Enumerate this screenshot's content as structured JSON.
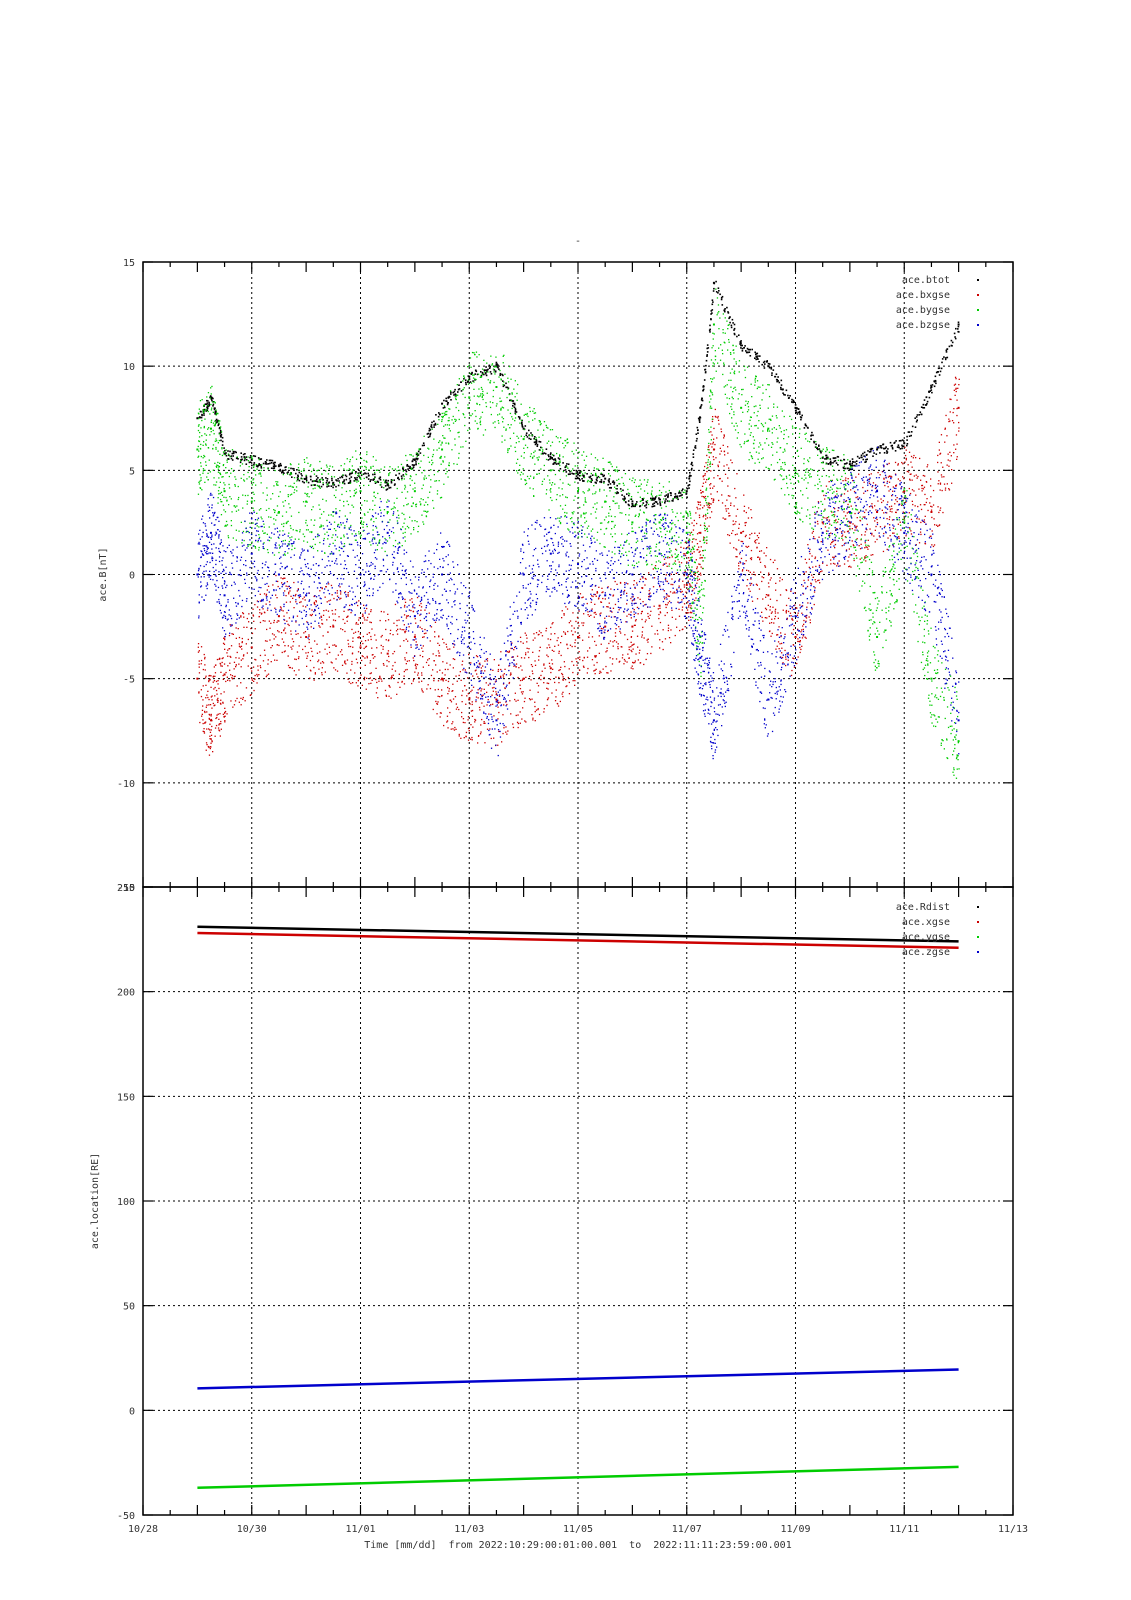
{
  "chart_data": [
    {
      "type": "scatter",
      "title": "-",
      "ylabel": "ace.B[nT]",
      "ylim": [
        -15,
        15
      ],
      "yticks": [
        -15,
        -10,
        -5,
        0,
        5,
        10,
        15
      ],
      "xlim": [
        "10/28",
        "11/13"
      ],
      "grid": true,
      "legend_position": "top-right",
      "series": [
        {
          "name": "ace.btot",
          "color": "#000000",
          "x": [
            "10/29 00:00",
            "10/29 06:00",
            "10/29 12:00",
            "10/30 00:00",
            "10/30 12:00",
            "10/31 00:00",
            "10/31 12:00",
            "11/01 00:00",
            "11/01 12:00",
            "11/02 00:00",
            "11/02 12:00",
            "11/03 00:00",
            "11/03 12:00",
            "11/04 00:00",
            "11/04 12:00",
            "11/05 00:00",
            "11/05 12:00",
            "11/06 00:00",
            "11/06 12:00",
            "11/07 00:00",
            "11/07 06:00",
            "11/07 12:00",
            "11/08 00:00",
            "11/08 12:00",
            "11/09 00:00",
            "11/09 12:00",
            "11/10 00:00",
            "11/10 12:00",
            "11/11 00:00",
            "11/11 12:00",
            "11/11 23:59"
          ],
          "y": [
            7.5,
            8.5,
            5.8,
            5.5,
            5.2,
            4.6,
            4.4,
            4.9,
            4.3,
            5.5,
            8.2,
            9.5,
            10.0,
            7.0,
            5.6,
            4.8,
            4.6,
            3.4,
            3.6,
            4.0,
            8.0,
            14.0,
            11.0,
            10.0,
            8.0,
            5.6,
            5.3,
            6.0,
            6.3,
            9.0,
            12.0
          ]
        },
        {
          "name": "ace.bxgse",
          "color": "#cc0000",
          "x": [
            "10/29 00:00",
            "10/29 06:00",
            "10/29 12:00",
            "10/30 00:00",
            "10/30 12:00",
            "10/31 00:00",
            "10/31 12:00",
            "11/01 00:00",
            "11/01 12:00",
            "11/02 00:00",
            "11/02 12:00",
            "11/03 00:00",
            "11/03 12:00",
            "11/04 00:00",
            "11/04 12:00",
            "11/05 00:00",
            "11/05 12:00",
            "11/06 00:00",
            "11/06 12:00",
            "11/07 00:00",
            "11/07 06:00",
            "11/07 12:00",
            "11/08 00:00",
            "11/08 12:00",
            "11/09 00:00",
            "11/09 12:00",
            "11/10 00:00",
            "11/10 12:00",
            "11/11 00:00",
            "11/11 12:00",
            "11/11 23:59"
          ],
          "y": [
            -5.0,
            -7.0,
            -4.8,
            -3.5,
            -2.0,
            -3.0,
            -2.5,
            -3.5,
            -3.8,
            -3.0,
            -5.0,
            -6.0,
            -6.0,
            -5.0,
            -4.5,
            -3.0,
            -2.5,
            -2.5,
            -1.5,
            -0.5,
            2.0,
            6.0,
            2.0,
            -1.0,
            -3.0,
            2.5,
            2.5,
            3.0,
            4.0,
            3.0,
            8.0
          ]
        },
        {
          "name": "ace.bygse",
          "color": "#00cc00",
          "x": [
            "10/29 00:00",
            "10/29 06:00",
            "10/29 12:00",
            "10/30 00:00",
            "10/30 12:00",
            "10/31 00:00",
            "10/31 12:00",
            "11/01 00:00",
            "11/01 12:00",
            "11/02 00:00",
            "11/02 12:00",
            "11/03 00:00",
            "11/03 12:00",
            "11/04 00:00",
            "11/04 12:00",
            "11/05 00:00",
            "11/05 12:00",
            "11/06 00:00",
            "11/06 12:00",
            "11/07 00:00",
            "11/07 06:00",
            "11/07 12:00",
            "11/08 00:00",
            "11/08 12:00",
            "11/09 00:00",
            "11/09 12:00",
            "11/10 00:00",
            "11/10 12:00",
            "11/11 00:00",
            "11/11 12:00",
            "11/11 23:59"
          ],
          "y": [
            6.0,
            7.0,
            4.0,
            3.5,
            3.0,
            3.5,
            3.0,
            4.0,
            3.0,
            4.0,
            6.0,
            8.5,
            9.0,
            6.5,
            5.0,
            4.0,
            3.5,
            2.5,
            2.5,
            2.0,
            -3.0,
            12.0,
            8.0,
            7.0,
            5.0,
            4.0,
            3.5,
            -3.0,
            2.5,
            -5.0,
            -8.0
          ]
        },
        {
          "name": "ace.bzgse",
          "color": "#0000cc",
          "x": [
            "10/29 00:00",
            "10/29 06:00",
            "10/29 12:00",
            "10/30 00:00",
            "10/30 12:00",
            "10/31 00:00",
            "10/31 12:00",
            "11/01 00:00",
            "11/01 12:00",
            "11/02 00:00",
            "11/02 12:00",
            "11/03 00:00",
            "11/03 12:00",
            "11/04 00:00",
            "11/04 12:00",
            "11/05 00:00",
            "11/05 12:00",
            "11/06 00:00",
            "11/06 12:00",
            "11/07 00:00",
            "11/07 06:00",
            "11/07 12:00",
            "11/08 00:00",
            "11/08 12:00",
            "11/09 00:00",
            "11/09 12:00",
            "11/10 00:00",
            "11/10 12:00",
            "11/11 00:00",
            "11/11 12:00",
            "11/11 23:59"
          ],
          "y": [
            0.0,
            2.0,
            -1.0,
            1.0,
            0.0,
            -1.0,
            1.0,
            0.0,
            2.0,
            -2.0,
            0.0,
            -3.0,
            -7.0,
            0.0,
            1.0,
            0.5,
            -1.0,
            0.0,
            1.0,
            0.0,
            -4.0,
            -7.0,
            0.0,
            -6.0,
            -2.0,
            2.0,
            3.0,
            4.0,
            2.0,
            0.0,
            -7.0
          ]
        }
      ]
    },
    {
      "type": "line",
      "ylabel": "ace.location[RE]",
      "xlabel": "Time [mm/dd]  from 2022:10:29:00:01:00.001  to  2022:11:11:23:59:00.001",
      "ylim": [
        -50,
        250
      ],
      "yticks": [
        -50,
        0,
        50,
        100,
        150,
        200,
        250
      ],
      "xlim": [
        "10/28",
        "11/13"
      ],
      "xticks": [
        "10/28",
        "10/30",
        "11/01",
        "11/03",
        "11/05",
        "11/07",
        "11/09",
        "11/11",
        "11/13"
      ],
      "grid": true,
      "legend_position": "top-right",
      "series": [
        {
          "name": "ace.Rdist",
          "color": "#000000",
          "x": [
            "10/29 00:01",
            "11/11 23:59"
          ],
          "y": [
            231,
            224
          ]
        },
        {
          "name": "ace.xgse",
          "color": "#cc0000",
          "x": [
            "10/29 00:01",
            "11/11 23:59"
          ],
          "y": [
            228,
            221
          ]
        },
        {
          "name": "ace.ygse",
          "color": "#00cc00",
          "x": [
            "10/29 00:01",
            "11/11 23:59"
          ],
          "y": [
            -37,
            -27
          ]
        },
        {
          "name": "ace.zgse",
          "color": "#0000cc",
          "x": [
            "10/29 00:01",
            "11/11 23:59"
          ],
          "y": [
            10.5,
            19.5
          ]
        }
      ]
    }
  ]
}
